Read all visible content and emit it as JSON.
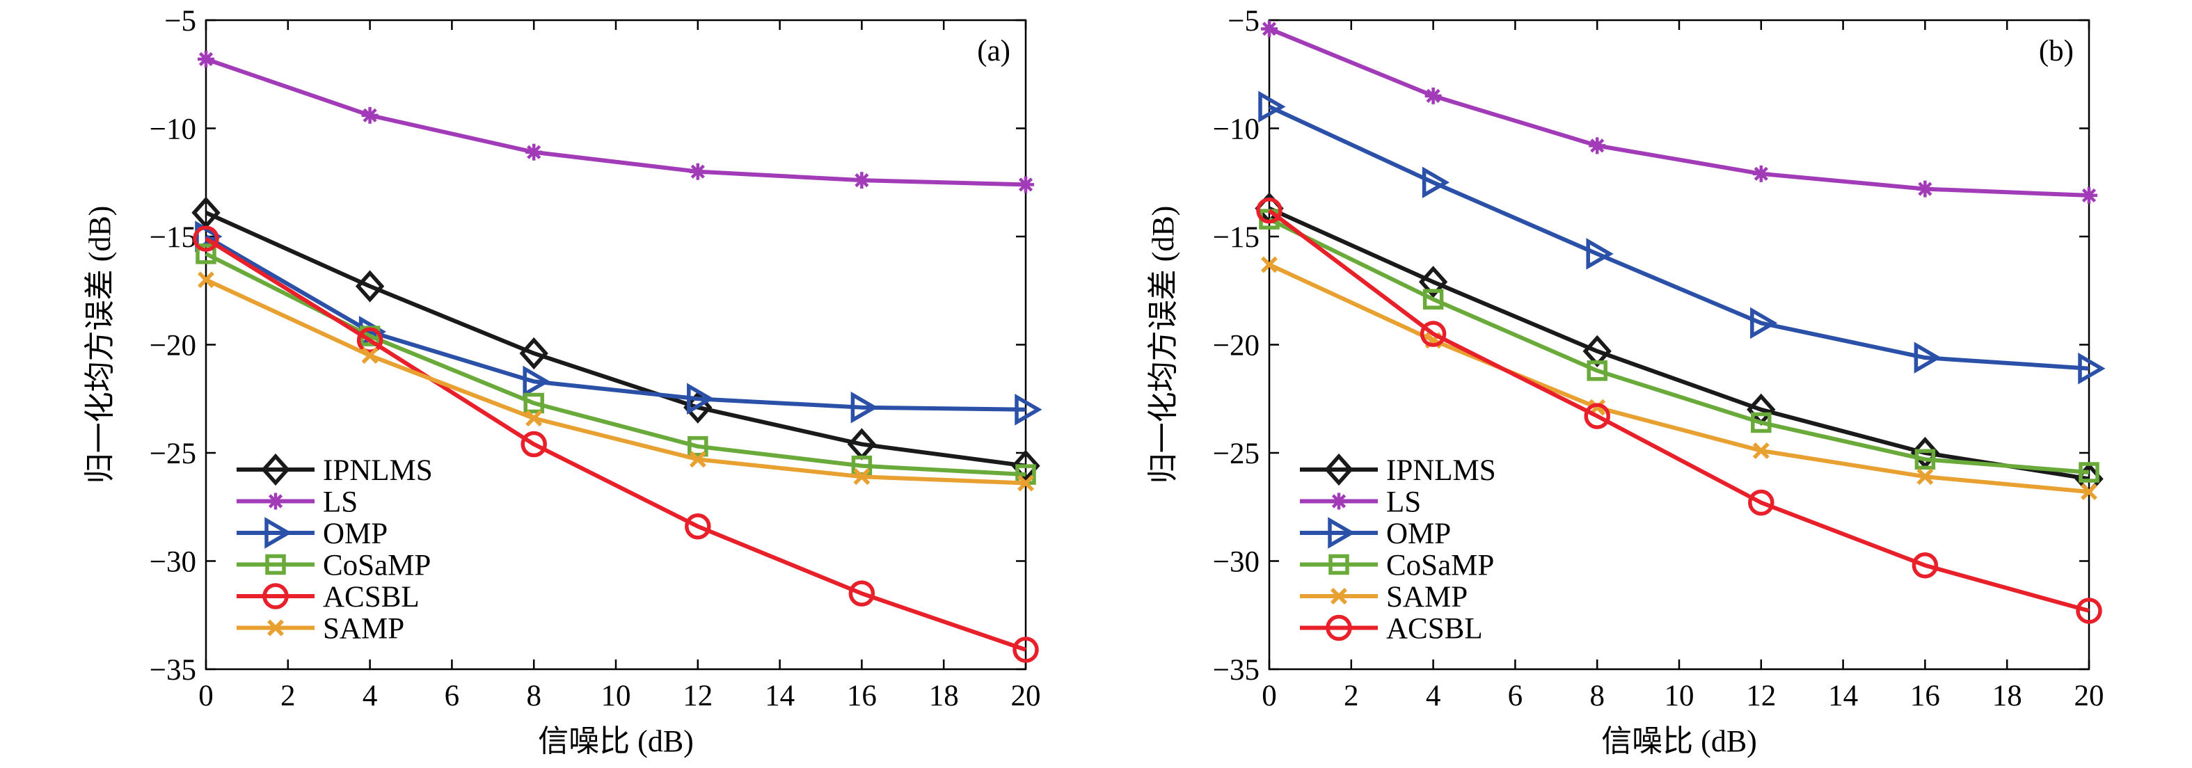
{
  "chart_data": [
    {
      "type": "line",
      "panel_label": "(a)",
      "xlabel": "信噪比 (dB)",
      "ylabel": "归一化均方误差 (dB)",
      "xlim": [
        0,
        20
      ],
      "ylim": [
        -35,
        -5
      ],
      "xticks": [
        0,
        2,
        4,
        6,
        8,
        10,
        12,
        14,
        16,
        18,
        20
      ],
      "yticks": [
        -35,
        -30,
        -25,
        -20,
        -15,
        -10,
        -5
      ],
      "x": [
        0,
        4,
        8,
        12,
        16,
        20
      ],
      "legend_position": "bottom-left",
      "grid": false,
      "series": [
        {
          "name": "IPNLMS",
          "color": "#1a1a1a",
          "marker": "diamond",
          "values": [
            -13.9,
            -17.3,
            -20.4,
            -22.9,
            -24.6,
            -25.6
          ]
        },
        {
          "name": "LS",
          "color": "#a23bb8",
          "marker": "asterisk",
          "values": [
            -6.8,
            -9.4,
            -11.1,
            -12.0,
            -12.4,
            -12.6
          ]
        },
        {
          "name": "OMP",
          "color": "#2b50a8",
          "marker": "triangle-right",
          "values": [
            -15.0,
            -19.4,
            -21.7,
            -22.5,
            -22.9,
            -23.0
          ]
        },
        {
          "name": "CoSaMP",
          "color": "#6aaa3a",
          "marker": "square",
          "values": [
            -15.8,
            -19.6,
            -22.7,
            -24.7,
            -25.6,
            -26.0
          ]
        },
        {
          "name": "ACSBL",
          "color": "#e8202a",
          "marker": "circle",
          "values": [
            -15.1,
            -19.8,
            -24.6,
            -28.4,
            -31.5,
            -34.1
          ]
        },
        {
          "name": "SAMP",
          "color": "#e8a030",
          "marker": "x",
          "values": [
            -17.0,
            -20.5,
            -23.4,
            -25.3,
            -26.1,
            -26.4
          ]
        }
      ]
    },
    {
      "type": "line",
      "panel_label": "(b)",
      "xlabel": "信噪比 (dB)",
      "ylabel": "归一化均方误差 (dB)",
      "xlim": [
        0,
        20
      ],
      "ylim": [
        -35,
        -5
      ],
      "xticks": [
        0,
        2,
        4,
        6,
        8,
        10,
        12,
        14,
        16,
        18,
        20
      ],
      "yticks": [
        -35,
        -30,
        -25,
        -20,
        -15,
        -10,
        -5
      ],
      "x": [
        0,
        4,
        8,
        12,
        16,
        20
      ],
      "legend_position": "bottom-left",
      "grid": false,
      "series": [
        {
          "name": "IPNLMS",
          "color": "#1a1a1a",
          "marker": "diamond",
          "values": [
            -13.7,
            -17.1,
            -20.3,
            -23.0,
            -25.0,
            -26.2
          ]
        },
        {
          "name": "LS",
          "color": "#a23bb8",
          "marker": "asterisk",
          "values": [
            -5.4,
            -8.5,
            -10.8,
            -12.1,
            -12.8,
            -13.1
          ]
        },
        {
          "name": "OMP",
          "color": "#2b50a8",
          "marker": "triangle-right",
          "values": [
            -9.0,
            -12.5,
            -15.8,
            -19.0,
            -20.6,
            -21.1
          ]
        },
        {
          "name": "CoSaMP",
          "color": "#6aaa3a",
          "marker": "square",
          "values": [
            -14.2,
            -17.9,
            -21.2,
            -23.6,
            -25.3,
            -25.9
          ]
        },
        {
          "name": "SAMP",
          "color": "#e8a030",
          "marker": "x",
          "values": [
            -16.3,
            -19.8,
            -22.9,
            -24.9,
            -26.1,
            -26.8
          ]
        },
        {
          "name": "ACSBL",
          "color": "#e8202a",
          "marker": "circle",
          "values": [
            -13.8,
            -19.5,
            -23.3,
            -27.3,
            -30.2,
            -32.3
          ]
        }
      ]
    }
  ]
}
